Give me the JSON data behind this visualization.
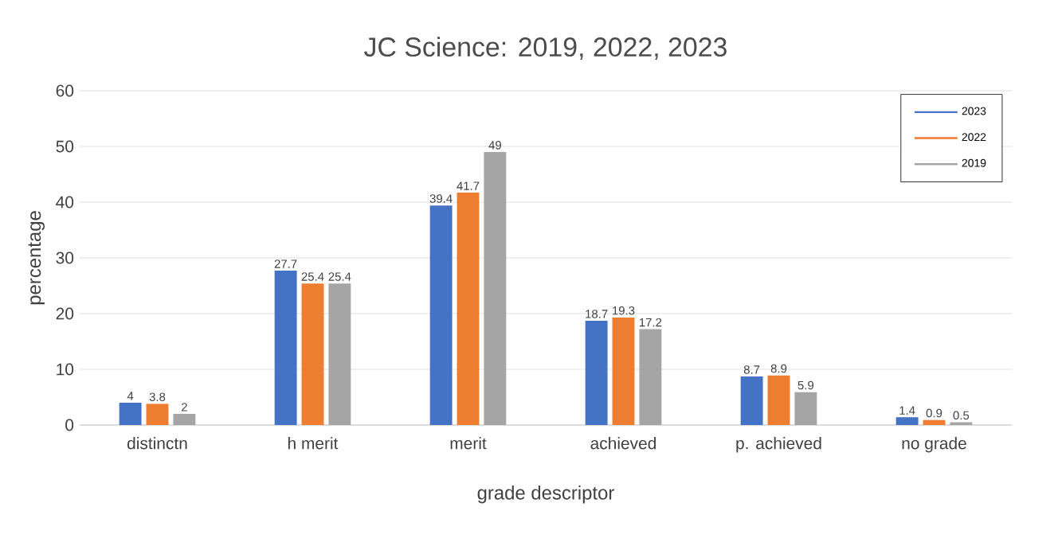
{
  "chart_data": {
    "type": "bar",
    "title": "JC Science: 2019, 2022, 2023",
    "xlabel": "grade descriptor",
    "ylabel": "percentage",
    "categories": [
      "distinctn",
      "h merit",
      "merit",
      "achieved",
      "p. achieved",
      "no grade"
    ],
    "series": [
      {
        "name": "2023",
        "color": "#4472c4",
        "values": [
          4,
          27.7,
          39.4,
          18.7,
          8.7,
          1.4
        ]
      },
      {
        "name": "2022",
        "color": "#ed7d31",
        "values": [
          3.8,
          25.4,
          41.7,
          19.3,
          8.9,
          0.9
        ]
      },
      {
        "name": "2019",
        "color": "#a5a5a5",
        "values": [
          2,
          25.4,
          49,
          17.2,
          5.9,
          0.5
        ]
      }
    ],
    "ylim": [
      0,
      60
    ],
    "yticks": [
      0,
      10,
      20,
      30,
      40,
      50,
      60
    ],
    "grid": "y",
    "legend": "top right",
    "data_labels": true
  }
}
